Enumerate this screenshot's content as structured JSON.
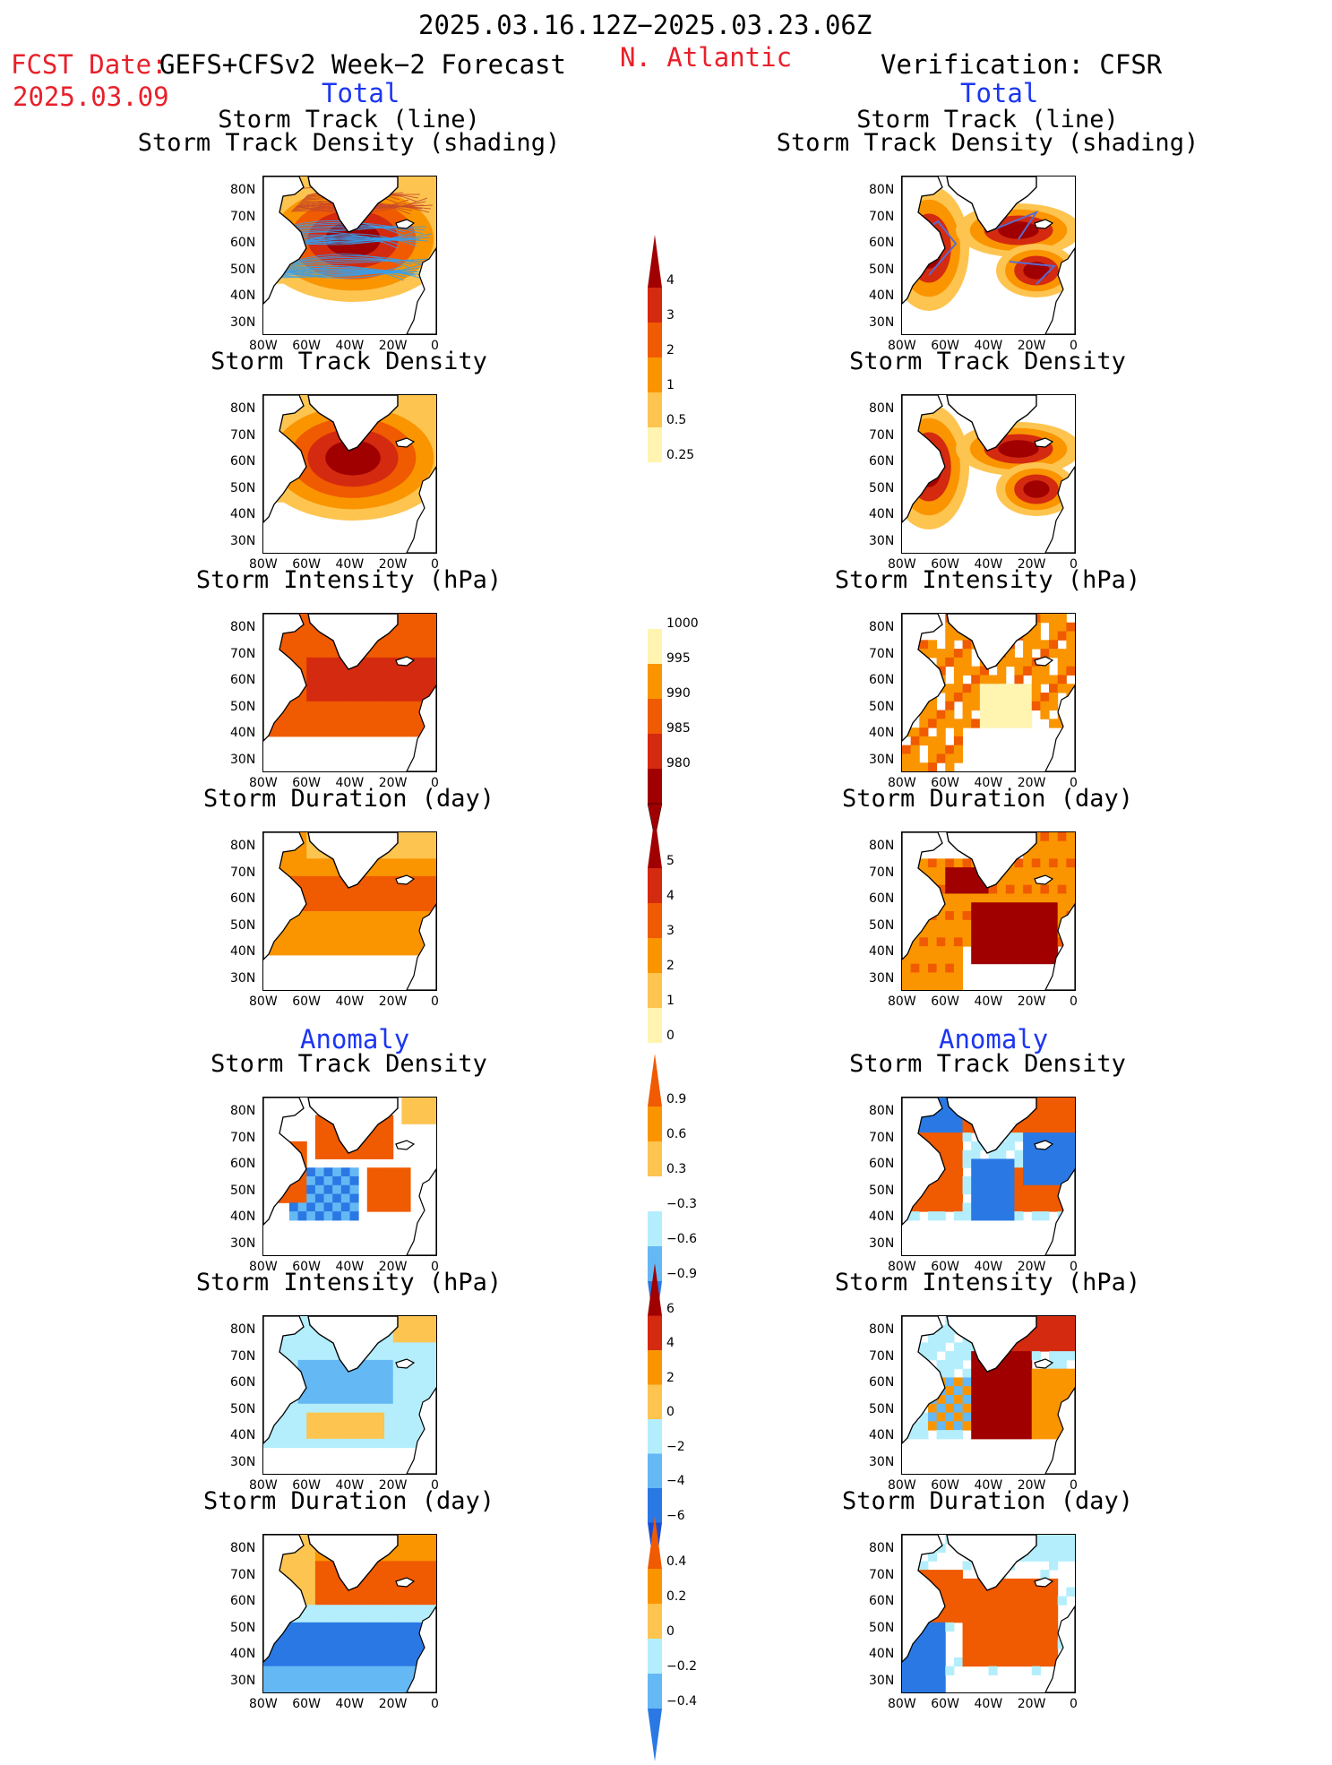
{
  "header": {
    "date_range": "2025.03.16.12Z−2025.03.23.06Z",
    "fcst_label": "FCST Date:",
    "fcst_model": "GEFS+CFSv2 Week−2 Forecast",
    "fcst_date": "2025.03.09",
    "region": "N. Atlantic",
    "verification": "Verification: CFSR",
    "total_left": "Total",
    "total_right": "Total",
    "anomaly_left": "Anomaly",
    "anomaly_right": "Anomaly"
  },
  "panel_titles": {
    "track_line": "Storm Track (line)",
    "track_shading": "Storm Track Density (shading)",
    "track_density": "Storm Track Density",
    "intensity": "Storm Intensity (hPa)",
    "duration": "Storm Duration (day)"
  },
  "axes": {
    "lat_ticks": [
      "80N",
      "70N",
      "60N",
      "50N",
      "40N",
      "30N"
    ],
    "lon_ticks": [
      "80W",
      "60W",
      "40W",
      "20W",
      "0"
    ]
  },
  "colorbars": {
    "density": [
      "4",
      "3",
      "2",
      "1",
      "0.5",
      "0.25"
    ],
    "intensity": [
      "1000",
      "995",
      "990",
      "985",
      "980"
    ],
    "duration": [
      "5",
      "4",
      "3",
      "2",
      "1",
      "0"
    ],
    "density_anom": [
      "0.9",
      "0.6",
      "0.3",
      "−0.3",
      "−0.6",
      "−0.9"
    ],
    "intensity_anom": [
      "6",
      "4",
      "2",
      "0",
      "−2",
      "−4",
      "−6"
    ],
    "duration_anom": [
      "0.4",
      "0.2",
      "0",
      "−0.2",
      "−0.4"
    ]
  },
  "colors": {
    "dark_red": "#a00000",
    "red": "#d42a10",
    "orange_red": "#f05a00",
    "orange": "#fa9500",
    "light_orange": "#fdc450",
    "pale_yellow": "#fff4b0",
    "light_blue": "#b4eefc",
    "mid_blue": "#64b8f4",
    "blue": "#2a78e4",
    "dark_blue": "#1a4cd0"
  }
}
